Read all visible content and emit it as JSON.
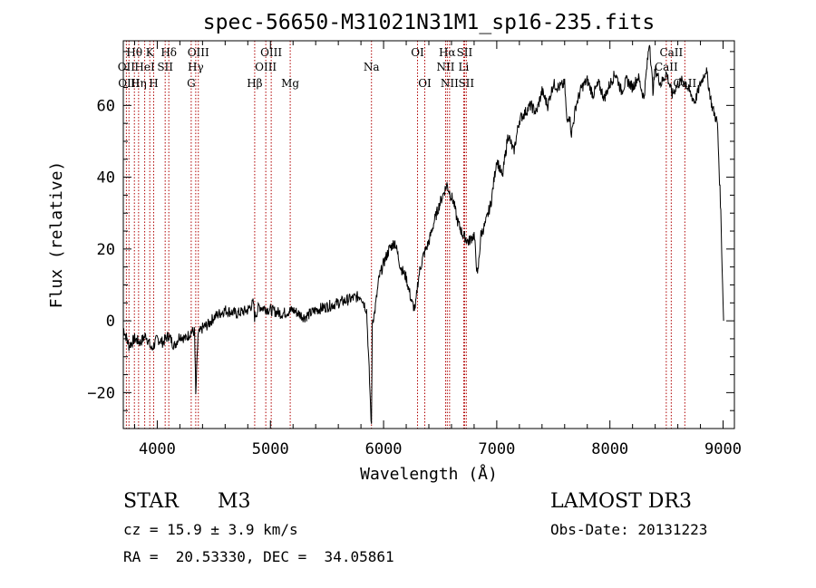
{
  "chart_data": {
    "type": "line",
    "title": "spec-56650-M31021N31M1_sp16-235.fits",
    "xlabel": "Wavelength (Å)",
    "ylabel": "Flux (relative)",
    "xlim": [
      3700,
      9100
    ],
    "ylim": [
      -30,
      78
    ],
    "xticks": [
      4000,
      5000,
      6000,
      7000,
      8000,
      9000
    ],
    "yticks": [
      -20,
      0,
      20,
      40,
      60
    ],
    "grid": false,
    "spectrum": {
      "x": [
        3700,
        3750,
        3800,
        3850,
        3900,
        3950,
        4000,
        4050,
        4100,
        4150,
        4200,
        4250,
        4300,
        4330,
        4340,
        4360,
        4400,
        4450,
        4500,
        4600,
        4700,
        4800,
        4850,
        4860,
        4900,
        5000,
        5100,
        5200,
        5300,
        5400,
        5500,
        5600,
        5700,
        5800,
        5850,
        5880,
        5893,
        5900,
        5920,
        5960,
        6000,
        6050,
        6100,
        6150,
        6200,
        6250,
        6280,
        6300,
        6320,
        6350,
        6400,
        6450,
        6500,
        6560,
        6580,
        6620,
        6650,
        6700,
        6750,
        6800,
        6830,
        6860,
        6900,
        6950,
        7000,
        7050,
        7100,
        7150,
        7200,
        7250,
        7300,
        7350,
        7400,
        7450,
        7500,
        7550,
        7600,
        7620,
        7640,
        7660,
        7700,
        7750,
        7800,
        7850,
        7900,
        7950,
        8000,
        8050,
        8100,
        8150,
        8200,
        8250,
        8300,
        8350,
        8380,
        8400,
        8450,
        8500,
        8550,
        8600,
        8650,
        8700,
        8750,
        8800,
        8850,
        8900,
        8950,
        8980,
        9000,
        9005
      ],
      "y": [
        -2,
        -7,
        -5,
        -6,
        -4,
        -8,
        -5,
        -6,
        -4,
        -7,
        -4,
        -5,
        -3,
        -3,
        -21,
        -4,
        -2,
        -1,
        1,
        3,
        2,
        3,
        5,
        1,
        4,
        3,
        2,
        3,
        1,
        3,
        4,
        5,
        6,
        7,
        3,
        -20,
        -30,
        0,
        2,
        12,
        16,
        20,
        22,
        15,
        12,
        5,
        3,
        10,
        14,
        18,
        22,
        28,
        33,
        38,
        36,
        33,
        28,
        24,
        22,
        24,
        12,
        24,
        27,
        33,
        45,
        40,
        52,
        47,
        56,
        58,
        60,
        58,
        64,
        60,
        66,
        65,
        66,
        55,
        58,
        52,
        60,
        65,
        67,
        63,
        66,
        62,
        66,
        69,
        64,
        67,
        65,
        68,
        62,
        78,
        64,
        70,
        66,
        69,
        63,
        66,
        67,
        64,
        61,
        66,
        70,
        60,
        55,
        30,
        5,
        0
      ]
    },
    "lines": [
      {
        "name": "Hθ",
        "x": 3798,
        "row": 1
      },
      {
        "name": "OII",
        "x": 3727,
        "row": 2
      },
      {
        "name": "OIII",
        "x": 3750,
        "row": 3
      },
      {
        "name": "K",
        "x": 3934,
        "row": 1
      },
      {
        "name": "HeI",
        "x": 3889,
        "row": 2
      },
      {
        "name": "Hη",
        "x": 3835,
        "row": 3
      },
      {
        "name": "SII",
        "x": 4070,
        "row": 2
      },
      {
        "name": "H",
        "x": 3968,
        "row": 3
      },
      {
        "name": "Hδ",
        "x": 4102,
        "row": 1
      },
      {
        "name": "OIII",
        "x": 4363,
        "row": 1
      },
      {
        "name": "Hγ",
        "x": 4340,
        "row": 2
      },
      {
        "name": "G",
        "x": 4300,
        "row": 3
      },
      {
        "name": "Hβ",
        "x": 4861,
        "row": 3
      },
      {
        "name": "OIII",
        "x": 5007,
        "row": 1
      },
      {
        "name": "OIII",
        "x": 4959,
        "row": 2
      },
      {
        "name": "Mg",
        "x": 5175,
        "row": 3
      },
      {
        "name": "Na",
        "x": 5893,
        "row": 2
      },
      {
        "name": "OI",
        "x": 6300,
        "row": 1
      },
      {
        "name": "OI",
        "x": 6364,
        "row": 3
      },
      {
        "name": "Hα",
        "x": 6563,
        "row": 1
      },
      {
        "name": "NII",
        "x": 6548,
        "row": 2
      },
      {
        "name": "NII",
        "x": 6583,
        "row": 3
      },
      {
        "name": "SII",
        "x": 6716,
        "row": 1
      },
      {
        "name": "Li",
        "x": 6708,
        "row": 2
      },
      {
        "name": "SII",
        "x": 6731,
        "row": 3
      },
      {
        "name": "CaII",
        "x": 8542,
        "row": 1
      },
      {
        "name": "CaII",
        "x": 8498,
        "row": 2
      },
      {
        "name": "CaII",
        "x": 8662,
        "row": 3
      }
    ]
  },
  "info": {
    "object_class": "STAR",
    "subclass": "M3",
    "survey": "LAMOST DR3",
    "redshift": "cz = 15.9 ± 3.9 km/s",
    "obs_date": "Obs-Date: 20131223",
    "coords": "RA =  20.53330, DEC =  34.05861"
  },
  "colors": {
    "line_marker": "#b00000",
    "spectrum": "#000000"
  }
}
